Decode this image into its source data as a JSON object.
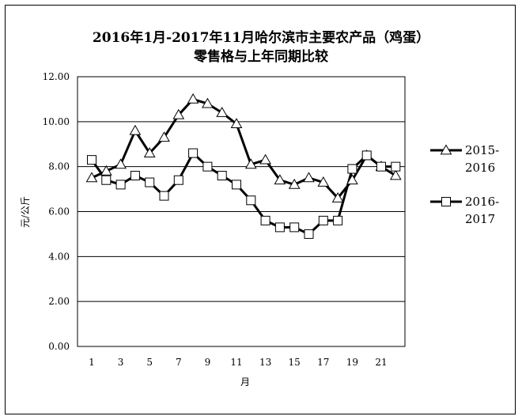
{
  "chart_data": {
    "type": "line",
    "title": "2016年1月-2017年11月哈尔滨市主要农产品（鸡蛋）",
    "subtitle": "零售格与上年同期比较",
    "xlabel": "月",
    "ylabel": "元/公斤",
    "ylim": [
      0,
      12
    ],
    "yticks": [
      "0.00",
      "2.00",
      "4.00",
      "6.00",
      "8.00",
      "10.00",
      "12.00"
    ],
    "xticks": [
      "1",
      "3",
      "5",
      "7",
      "9",
      "11",
      "13",
      "15",
      "17",
      "19",
      "21"
    ],
    "x": [
      1,
      2,
      3,
      4,
      5,
      6,
      7,
      8,
      9,
      10,
      11,
      12,
      13,
      14,
      15,
      16,
      17,
      18,
      19,
      20,
      21,
      22
    ],
    "grid": "horizontal",
    "legend_position": "right",
    "series": [
      {
        "name": "2015-2016",
        "marker": "triangle",
        "values": [
          7.5,
          7.8,
          8.1,
          9.6,
          8.6,
          9.3,
          10.3,
          11.0,
          10.8,
          10.4,
          9.9,
          8.1,
          8.3,
          7.4,
          7.2,
          7.5,
          7.3,
          6.6,
          7.4,
          8.5,
          8.0,
          7.6
        ]
      },
      {
        "name": "2016-2017",
        "marker": "square",
        "values": [
          8.3,
          7.4,
          7.2,
          7.6,
          7.3,
          6.7,
          7.4,
          8.6,
          8.0,
          7.6,
          7.2,
          6.5,
          5.6,
          5.3,
          5.3,
          5.0,
          5.6,
          5.6,
          7.9,
          8.5,
          8.0,
          8.0
        ]
      }
    ]
  }
}
